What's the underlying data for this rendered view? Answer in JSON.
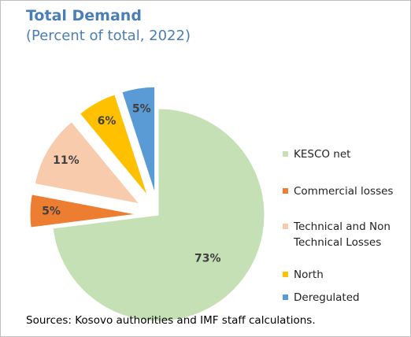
{
  "chart_data": {
    "type": "pie",
    "title": "Total Demand",
    "subtitle": "(Percent of total, 2022)",
    "categories": [
      "KESCO net",
      "Commercial losses",
      "Technical and Non Technical Losses",
      "North",
      "Deregulated"
    ],
    "values": [
      73,
      5,
      11,
      6,
      5
    ],
    "value_labels": [
      "73%",
      "5%",
      "11%",
      "6%",
      "5%"
    ],
    "colors": [
      "#c5e0b4",
      "#ed7d31",
      "#f8cbad",
      "#ffc000",
      "#5b9bd5"
    ],
    "legend": "right",
    "note": "Sources: Kosovo authorities and IMF staff calculations."
  }
}
